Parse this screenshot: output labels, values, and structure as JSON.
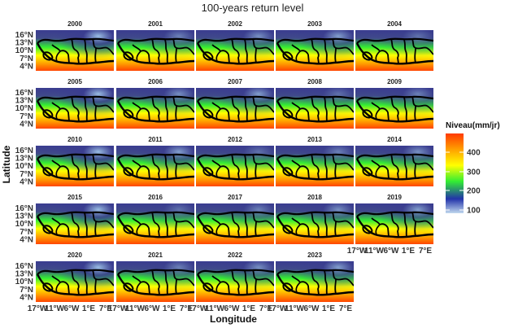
{
  "title": "100-years return level",
  "facets": [
    "2000",
    "2001",
    "2002",
    "2003",
    "2004",
    "2005",
    "2006",
    "2007",
    "2008",
    "2009",
    "2010",
    "2011",
    "2012",
    "2013",
    "2014",
    "2015",
    "2016",
    "2017",
    "2018",
    "2019",
    "2020",
    "2021",
    "2022",
    "2023"
  ],
  "axes": {
    "x_title": "Longitude",
    "y_title": "Latitude",
    "y_ticks": [
      "16°N",
      "13°N",
      "10°N",
      "7°N",
      "4°N"
    ],
    "x_ticks": [
      "17°W",
      "11°W",
      "6°W",
      "1°E",
      "7°E"
    ]
  },
  "legend": {
    "title": "Niveau(mm/jr)",
    "labels": [
      "400",
      "300",
      "200",
      "100"
    ],
    "colors": [
      "#ff3a00",
      "#ffa000",
      "#ffff00",
      "#33ee33",
      "#2233aa",
      "#c0d8ee"
    ]
  },
  "chart_data": {
    "type": "heatmap",
    "title": "100-years return level",
    "xlabel": "Longitude",
    "ylabel": "Latitude",
    "panels": [
      "2000",
      "2001",
      "2002",
      "2003",
      "2004",
      "2005",
      "2006",
      "2007",
      "2008",
      "2009",
      "2010",
      "2011",
      "2012",
      "2013",
      "2014",
      "2015",
      "2016",
      "2017",
      "2018",
      "2019",
      "2020",
      "2021",
      "2022",
      "2023"
    ],
    "legend_title": "Niveau(mm/jr)",
    "legend_breaks": [
      100,
      200,
      300,
      400
    ]
  }
}
